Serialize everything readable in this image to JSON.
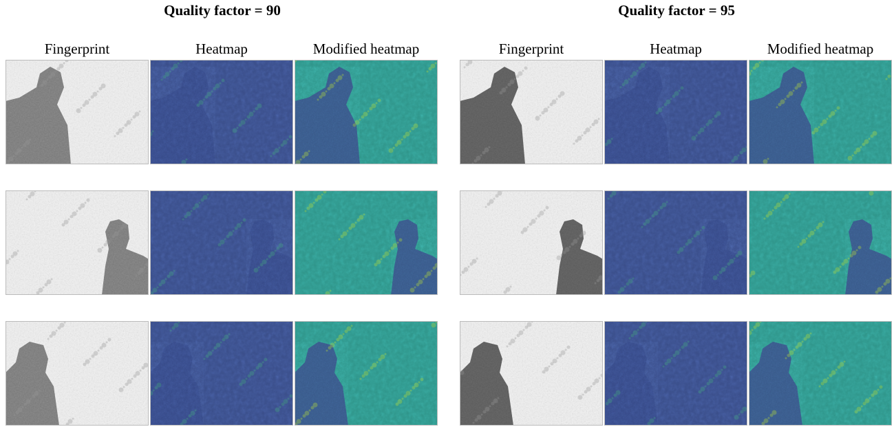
{
  "panels": [
    {
      "title": "Quality factor = 90",
      "columns": [
        "Fingerprint",
        "Heatmap",
        "Modified heatmap"
      ]
    },
    {
      "title": "Quality factor = 95",
      "columns": [
        "Fingerprint",
        "Heatmap",
        "Modified heatmap"
      ]
    }
  ]
}
